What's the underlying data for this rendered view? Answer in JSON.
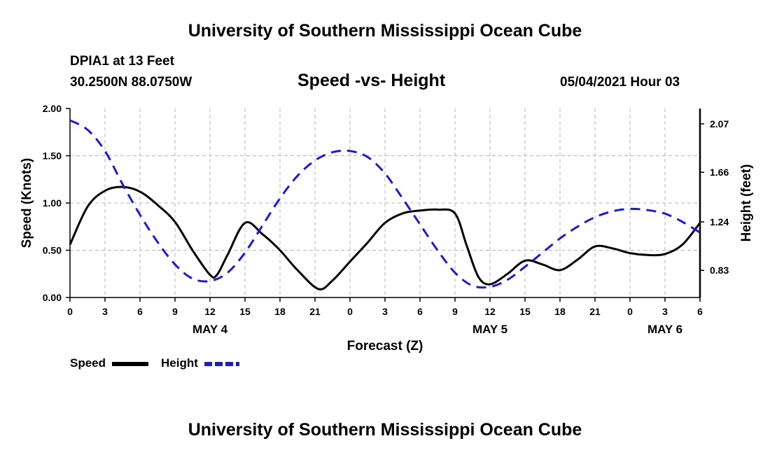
{
  "header": {
    "title": "University of Southern Mississippi Ocean Cube",
    "station": "DPIA1 at 13 Feet",
    "coords": "30.2500N  88.0750W",
    "chart_title": "Speed -vs- Height",
    "datetime": "05/04/2021 Hour 03"
  },
  "footer": {
    "title": "University of Southern Mississippi Ocean Cube"
  },
  "legend": {
    "speed_label": "Speed",
    "height_label": "Height"
  },
  "colors": {
    "speed": "#000000",
    "height": "#1a1adc",
    "grid": "#b4b4b4"
  },
  "chart_data": {
    "type": "line",
    "title": "Speed -vs- Height",
    "xlabel": "Forecast (Z)",
    "ylabel": "Speed (Knots)",
    "y2label": "Height (feet)",
    "xlim": [
      0,
      54
    ],
    "ylim": [
      0,
      2.0
    ],
    "y2lim": [
      0.6,
      2.2
    ],
    "x_ticks": [
      0,
      3,
      6,
      9,
      12,
      15,
      18,
      21,
      24,
      27,
      30,
      33,
      36,
      39,
      42,
      45,
      48,
      51,
      54
    ],
    "x_tick_labels": [
      "0",
      "3",
      "6",
      "9",
      "12",
      "15",
      "18",
      "21",
      "0",
      "3",
      "6",
      "9",
      "12",
      "15",
      "18",
      "21",
      "0",
      "3",
      "6"
    ],
    "y_ticks": [
      0,
      0.5,
      1.0,
      1.5,
      2.0
    ],
    "y_tick_labels": [
      "0.00",
      "0.50",
      "1.00",
      "1.50",
      "2.00"
    ],
    "y2_ticks": [
      0.83,
      1.24,
      1.66,
      2.07
    ],
    "y2_tick_labels": [
      "0.83",
      "1.24",
      "1.66",
      "2.07"
    ],
    "day_labels": [
      {
        "x": 12,
        "label": "MAY 4"
      },
      {
        "x": 36,
        "label": "MAY 5"
      },
      {
        "x": 51,
        "label": "MAY 6"
      }
    ],
    "grid": true,
    "series": [
      {
        "name": "Speed",
        "axis": "left",
        "style": "solid",
        "x": [
          0,
          1.5,
          3,
          4.5,
          6,
          7.5,
          9,
          10.5,
          12,
          12.6,
          13.5,
          15,
          16.5,
          18,
          19.5,
          21.3,
          22.5,
          24,
          25.5,
          27,
          28.5,
          30,
          31.5,
          33,
          34,
          35,
          36,
          37.5,
          39,
          40.5,
          42,
          43.5,
          45,
          46.5,
          48,
          49.5,
          51,
          52.5,
          54
        ],
        "y": [
          0.56,
          0.96,
          1.13,
          1.17,
          1.12,
          0.98,
          0.8,
          0.5,
          0.24,
          0.24,
          0.45,
          0.79,
          0.67,
          0.5,
          0.29,
          0.09,
          0.18,
          0.38,
          0.58,
          0.79,
          0.89,
          0.92,
          0.93,
          0.89,
          0.55,
          0.22,
          0.14,
          0.25,
          0.39,
          0.35,
          0.29,
          0.4,
          0.54,
          0.52,
          0.47,
          0.45,
          0.46,
          0.56,
          0.79
        ]
      },
      {
        "name": "Height",
        "axis": "right",
        "style": "dashed",
        "x": [
          0,
          1.5,
          3,
          4.5,
          6,
          7.5,
          9,
          10.5,
          12,
          13.5,
          15,
          16.5,
          18,
          19.5,
          21,
          22.5,
          24,
          25.5,
          27,
          28.5,
          30,
          31.5,
          33,
          34.5,
          36,
          37.5,
          39,
          40.5,
          42,
          43.5,
          45,
          46.5,
          48,
          49.5,
          51,
          52.5,
          54
        ],
        "y": [
          2.1,
          2.02,
          1.84,
          1.56,
          1.3,
          1.07,
          0.88,
          0.76,
          0.74,
          0.81,
          0.98,
          1.21,
          1.44,
          1.63,
          1.76,
          1.83,
          1.84,
          1.79,
          1.65,
          1.44,
          1.22,
          1.0,
          0.81,
          0.7,
          0.69,
          0.75,
          0.86,
          0.98,
          1.1,
          1.2,
          1.28,
          1.33,
          1.35,
          1.34,
          1.31,
          1.24,
          1.15
        ]
      }
    ]
  }
}
